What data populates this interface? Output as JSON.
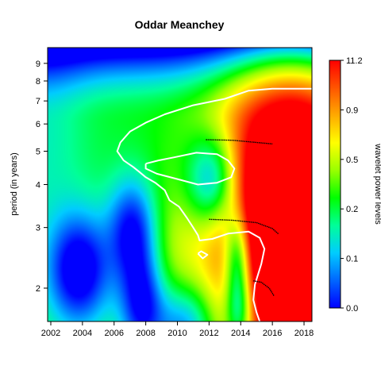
{
  "chart_data": {
    "type": "heatmap",
    "title": "Oddar Meanchey",
    "xlabel": "",
    "ylabel": "period (in years)",
    "colorbar_label": "wavelet power levels",
    "x_ticks": [
      2002,
      2004,
      2006,
      2008,
      2010,
      2012,
      2014,
      2016,
      2018
    ],
    "xlim": [
      2001.8,
      2018.5
    ],
    "y_ticks": [
      2,
      3,
      4,
      5,
      6,
      7,
      8,
      9
    ],
    "ylim": [
      1.6,
      10
    ],
    "y_scale": "log",
    "colorbar_ticks": [
      "0.0",
      "0.1",
      "0.2",
      "0.5",
      "0.9",
      "11.2"
    ],
    "colorbar_colors": [
      "#0000ff",
      "#0066ff",
      "#00ccff",
      "#00ff99",
      "#00ff00",
      "#99ff00",
      "#ffff00",
      "#ffaa00",
      "#ff5500",
      "#ff0000"
    ],
    "field": {
      "background_level": 0.42,
      "components": [
        {
          "x": 2018.5,
          "y": 1.9,
          "sx": 3.5,
          "sy": 0.45,
          "amp": 0.75
        },
        {
          "x": 2017.2,
          "y": 5.3,
          "sx": 3.2,
          "sy": 0.3,
          "amp": 0.55
        },
        {
          "x": 2014.5,
          "y": 3.1,
          "sx": 2.5,
          "sy": 0.25,
          "amp": 0.25
        },
        {
          "x": 2009.5,
          "y": 2.5,
          "sx": 1.8,
          "sy": 0.12,
          "amp": 0.12
        },
        {
          "x": 2012.3,
          "y": 4.1,
          "sx": 1.2,
          "sy": 0.05,
          "amp": -0.5
        },
        {
          "x": 2007.2,
          "y": 2.95,
          "sx": 1.1,
          "sy": 0.06,
          "amp": -0.45
        },
        {
          "x": 2003.8,
          "y": 2.25,
          "sx": 1.4,
          "sy": 0.07,
          "amp": -0.5
        },
        {
          "x": 2007.8,
          "y": 1.8,
          "sx": 1.0,
          "sy": 0.06,
          "amp": -0.45
        },
        {
          "x": 2013.8,
          "y": 2.55,
          "sx": 0.6,
          "sy": 0.04,
          "amp": -0.45
        },
        {
          "x": 2013.9,
          "y": 1.75,
          "sx": 0.6,
          "sy": 0.04,
          "amp": -0.45
        },
        {
          "x": 2010.5,
          "y": 1.55,
          "sx": 1.3,
          "sy": 0.04,
          "amp": -0.35
        },
        {
          "x": 2001.5,
          "y": 6.0,
          "sx": 2.0,
          "sy": 0.5,
          "amp": -0.12
        }
      ],
      "top_fade": {
        "start": 6.0,
        "end": 10.0,
        "amp": 0.55
      }
    },
    "significance_contours": [
      [
        [
          2018.5,
          7.6
        ],
        [
          2016.0,
          7.6
        ],
        [
          2014.5,
          7.5
        ],
        [
          2013.0,
          7.1
        ],
        [
          2011.0,
          6.8
        ],
        [
          2009.2,
          6.4
        ],
        [
          2008.0,
          6.05
        ],
        [
          2007.0,
          5.7
        ],
        [
          2006.4,
          5.3
        ],
        [
          2006.2,
          5.0
        ],
        [
          2006.6,
          4.7
        ],
        [
          2007.2,
          4.5
        ],
        [
          2007.6,
          4.35
        ],
        [
          2008.0,
          4.2
        ],
        [
          2008.6,
          4.05
        ],
        [
          2009.2,
          3.85
        ],
        [
          2009.5,
          3.6
        ],
        [
          2010.1,
          3.45
        ],
        [
          2010.6,
          3.2
        ],
        [
          2011.0,
          3.0
        ],
        [
          2011.3,
          2.85
        ],
        [
          2011.4,
          2.75
        ],
        [
          2012.2,
          2.78
        ],
        [
          2013.2,
          2.88
        ],
        [
          2014.5,
          2.92
        ],
        [
          2015.2,
          2.8
        ],
        [
          2015.5,
          2.6
        ],
        [
          2015.3,
          2.35
        ],
        [
          2014.9,
          2.05
        ],
        [
          2014.8,
          1.85
        ],
        [
          2015.0,
          1.7
        ],
        [
          2015.2,
          1.6
        ]
      ],
      [
        [
          2008.0,
          4.6
        ],
        [
          2008.8,
          4.7
        ],
        [
          2009.8,
          4.8
        ],
        [
          2011.2,
          4.95
        ],
        [
          2012.5,
          4.9
        ],
        [
          2013.2,
          4.7
        ],
        [
          2013.6,
          4.45
        ],
        [
          2013.4,
          4.2
        ],
        [
          2012.5,
          4.05
        ],
        [
          2011.3,
          4.0
        ],
        [
          2010.0,
          4.15
        ],
        [
          2008.7,
          4.3
        ],
        [
          2008.0,
          4.45
        ],
        [
          2008.0,
          4.6
        ]
      ],
      [
        [
          2011.3,
          2.52
        ],
        [
          2011.6,
          2.44
        ],
        [
          2011.9,
          2.5
        ],
        [
          2011.5,
          2.56
        ],
        [
          2011.3,
          2.52
        ]
      ]
    ],
    "ridges": [
      [
        [
          2011.8,
          5.4
        ],
        [
          2013.5,
          5.38
        ],
        [
          2015.0,
          5.3
        ],
        [
          2016.0,
          5.25
        ]
      ],
      [
        [
          2012.0,
          3.17
        ],
        [
          2013.5,
          3.15
        ],
        [
          2015.0,
          3.1
        ],
        [
          2016.0,
          2.98
        ],
        [
          2016.4,
          2.87
        ]
      ],
      [
        [
          2014.8,
          2.1
        ],
        [
          2015.3,
          2.08
        ],
        [
          2015.8,
          2.0
        ],
        [
          2016.1,
          1.9
        ]
      ]
    ]
  }
}
